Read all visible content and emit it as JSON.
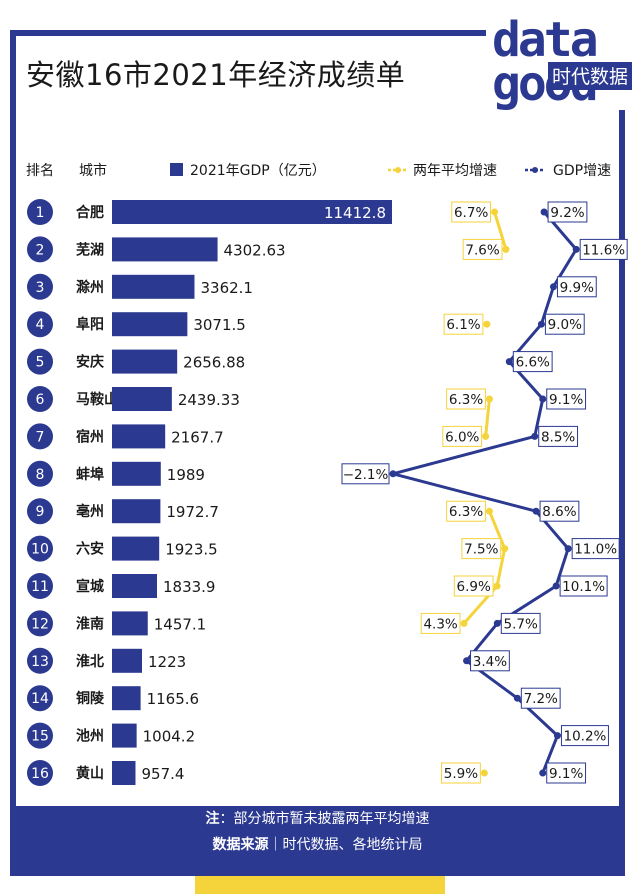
{
  "title": "安徽16市2021年经济成绩单",
  "logo": {
    "text_top": "data",
    "text_bottom": "good",
    "brand": "时代数据"
  },
  "header": {
    "rank": "排名",
    "city": "城市",
    "gdp_legend": "2021年GDP（亿元）",
    "avg_legend": "两年平均增速",
    "growth_legend": "GDP增速"
  },
  "colors": {
    "navy": "#2b3990",
    "yellow": "#f5d33a",
    "text": "#1a1a1a"
  },
  "chart_data": {
    "type": "bar",
    "title": "安徽16市2021年经济成绩单",
    "xlabel": "",
    "ylabel": "2021年GDP（亿元）",
    "categories": [
      "合肥",
      "芜湖",
      "滁州",
      "阜阳",
      "安庆",
      "马鞍山",
      "宿州",
      "蚌埠",
      "亳州",
      "六安",
      "宣城",
      "淮南",
      "淮北",
      "铜陵",
      "池州",
      "黄山"
    ],
    "ranks": [
      "1",
      "2",
      "3",
      "4",
      "5",
      "6",
      "7",
      "8",
      "9",
      "10",
      "11",
      "12",
      "13",
      "14",
      "15",
      "16"
    ],
    "series": [
      {
        "name": "2021年GDP（亿元）",
        "type": "bar",
        "values": [
          11412.8,
          4302.63,
          3362.1,
          3071.5,
          2656.88,
          2439.33,
          2167.7,
          1989,
          1972.7,
          1923.5,
          1833.9,
          1457.1,
          1223,
          1165.6,
          1004.2,
          957.4
        ],
        "labels": [
          "11412.8",
          "4302.63",
          "3362.1",
          "3071.5",
          "2656.88",
          "2439.33",
          "2167.7",
          "1989",
          "1972.7",
          "1923.5",
          "1833.9",
          "1457.1",
          "1223",
          "1165.6",
          "1004.2",
          "957.4"
        ]
      },
      {
        "name": "GDP增速",
        "type": "line",
        "values": [
          9.2,
          11.6,
          9.9,
          9.0,
          6.6,
          9.1,
          8.5,
          -2.1,
          8.6,
          11.0,
          10.1,
          5.7,
          3.4,
          7.2,
          10.2,
          9.1
        ],
        "labels": [
          "9.2%",
          "11.6%",
          "9.9%",
          "9.0%",
          "6.6%",
          "9.1%",
          "8.5%",
          "−2.1%",
          "8.6%",
          "11.0%",
          "10.1%",
          "5.7%",
          "3.4%",
          "7.2%",
          "10.2%",
          "9.1%"
        ]
      },
      {
        "name": "两年平均增速",
        "type": "line",
        "values": [
          6.7,
          7.6,
          null,
          6.1,
          null,
          6.3,
          6.0,
          null,
          6.3,
          7.5,
          6.9,
          4.3,
          null,
          null,
          null,
          5.9
        ],
        "labels": [
          "6.7%",
          "7.6%",
          null,
          "6.1%",
          null,
          "6.3%",
          "6.0%",
          null,
          "6.3%",
          "7.5%",
          "6.9%",
          "4.3%",
          null,
          null,
          null,
          "5.9%"
        ]
      }
    ]
  },
  "footer": {
    "note_label": "注",
    "note_text": "：部分城市暂未披露两年平均增速",
    "source_label": "数据来源",
    "source_text": "｜时代数据、各地统计局"
  }
}
